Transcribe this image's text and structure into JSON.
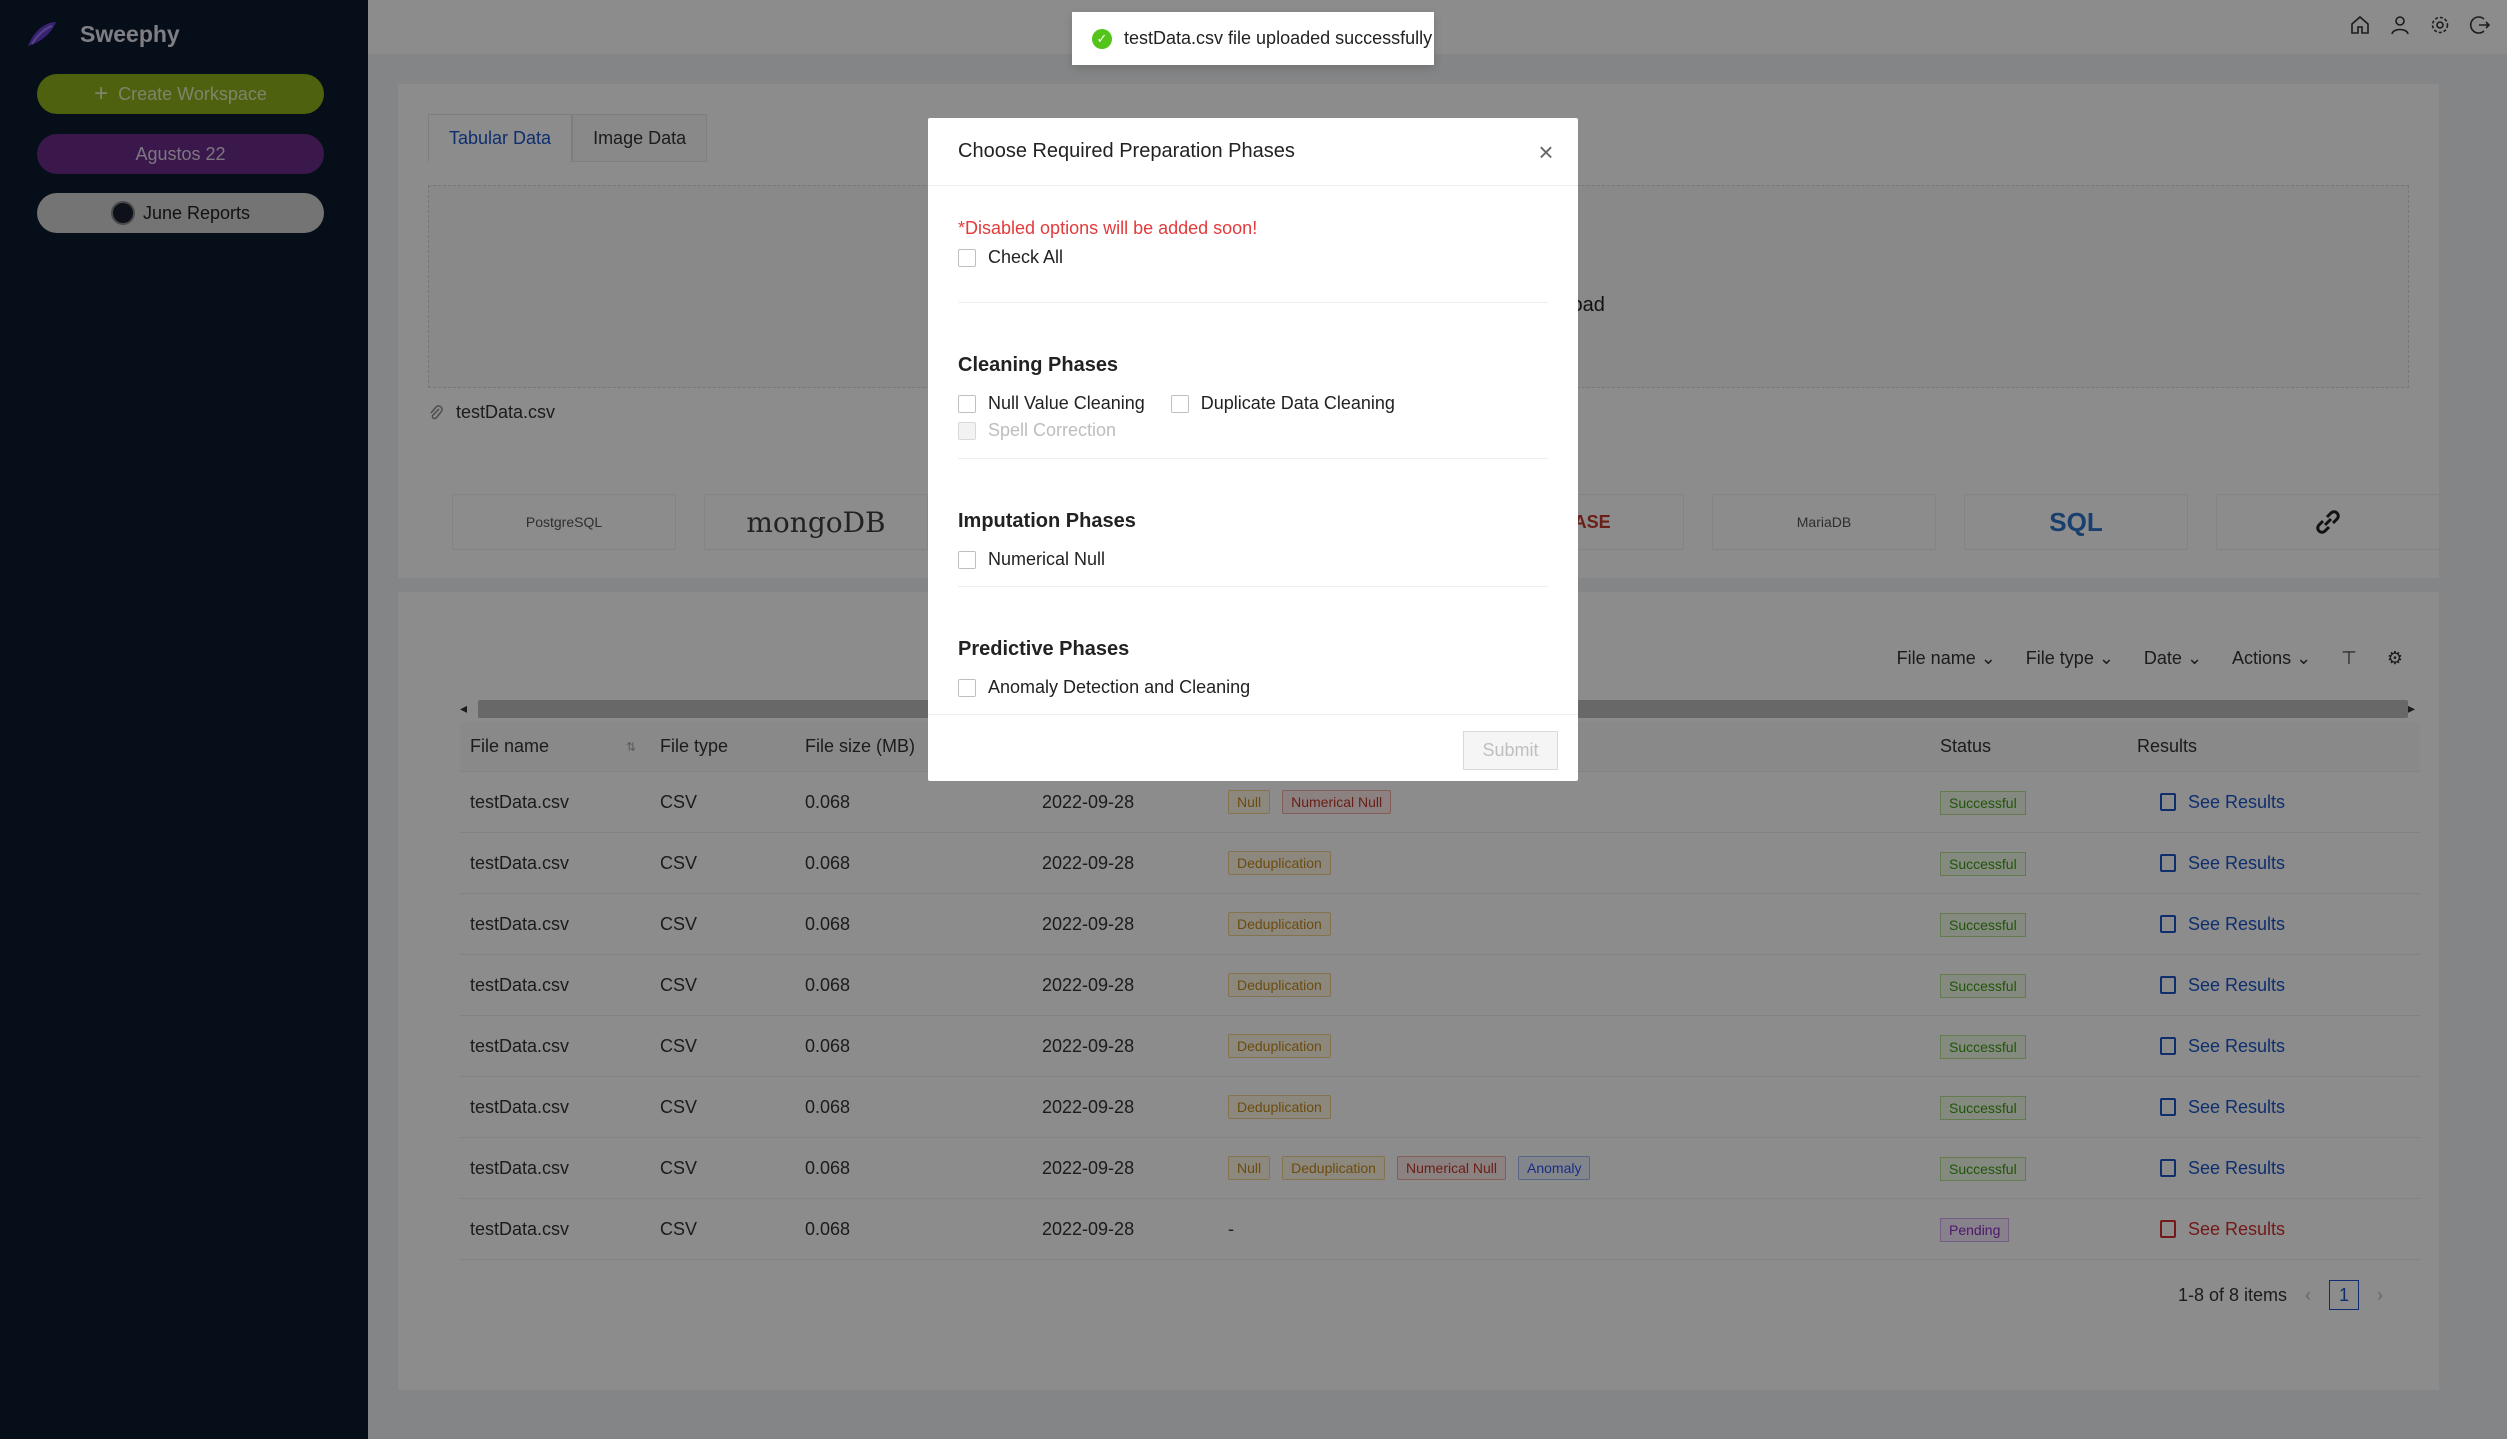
{
  "app": {
    "name": "Sweephy"
  },
  "sidebar": {
    "create_label": "Create Workspace",
    "workspaces": [
      "Agustos 22",
      "June Reports"
    ]
  },
  "colors": {
    "create": "#8fb11c",
    "agustos": "#6b2d8a",
    "accent": "#1a55c9"
  },
  "tabs": [
    "Tabular Data",
    "Image Data"
  ],
  "upload": {
    "partial_text": "load",
    "file": "testData.csv"
  },
  "databases": [
    "PostgreSQL",
    "mongoDB",
    "CLE ASE",
    "MariaDB",
    "SQL",
    "link"
  ],
  "toolbar": {
    "filters": [
      "File name",
      "File type",
      "Date",
      "Actions"
    ]
  },
  "table": {
    "headers": [
      "File name",
      "File type",
      "File size (MB)",
      "",
      "",
      "Status",
      "Results"
    ],
    "results_label": "See Results",
    "rows": [
      {
        "name": "testData.csv",
        "type": "CSV",
        "size": "0.068",
        "date": "2022-09-28",
        "tags": [
          "Null",
          "Numerical Null"
        ],
        "status": "Successful"
      },
      {
        "name": "testData.csv",
        "type": "CSV",
        "size": "0.068",
        "date": "2022-09-28",
        "tags": [
          "Deduplication"
        ],
        "status": "Successful"
      },
      {
        "name": "testData.csv",
        "type": "CSV",
        "size": "0.068",
        "date": "2022-09-28",
        "tags": [
          "Deduplication"
        ],
        "status": "Successful"
      },
      {
        "name": "testData.csv",
        "type": "CSV",
        "size": "0.068",
        "date": "2022-09-28",
        "tags": [
          "Deduplication"
        ],
        "status": "Successful"
      },
      {
        "name": "testData.csv",
        "type": "CSV",
        "size": "0.068",
        "date": "2022-09-28",
        "tags": [
          "Deduplication"
        ],
        "status": "Successful"
      },
      {
        "name": "testData.csv",
        "type": "CSV",
        "size": "0.068",
        "date": "2022-09-28",
        "tags": [
          "Deduplication"
        ],
        "status": "Successful"
      },
      {
        "name": "testData.csv",
        "type": "CSV",
        "size": "0.068",
        "date": "2022-09-28",
        "tags": [
          "Null",
          "Deduplication",
          "Numerical Null",
          "Anomaly"
        ],
        "status": "Successful"
      },
      {
        "name": "testData.csv",
        "type": "CSV",
        "size": "0.068",
        "date": "2022-09-28",
        "tags": [],
        "dash": "-",
        "status": "Pending"
      }
    ]
  },
  "pagination": {
    "summary": "1-8 of 8 items",
    "page": "1"
  },
  "toast": {
    "message": "testData.csv file uploaded successfully"
  },
  "modal": {
    "title": "Choose Required Preparation Phases",
    "warning": "*Disabled options will be added soon!",
    "check_all": "Check All",
    "cleaning_title": "Cleaning Phases",
    "cleaning": [
      "Null Value Cleaning",
      "Duplicate Data Cleaning",
      "Spell Correction"
    ],
    "imputation_title": "Imputation Phases",
    "imputation": [
      "Numerical Null"
    ],
    "predictive_title": "Predictive Phases",
    "predictive": [
      "Anomaly Detection and Cleaning"
    ],
    "submit": "Submit"
  }
}
